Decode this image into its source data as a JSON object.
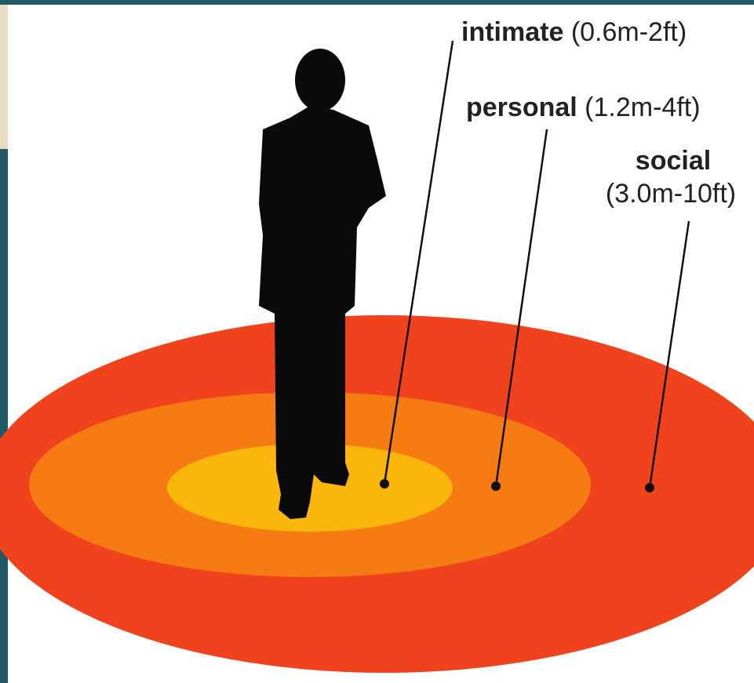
{
  "zones": [
    {
      "name": "intimate",
      "range": "(0.6m-2ft)"
    },
    {
      "name": "personal",
      "range": "(1.2m-4ft)"
    },
    {
      "name": "social",
      "range": "(3.0m-10ft)"
    }
  ]
}
